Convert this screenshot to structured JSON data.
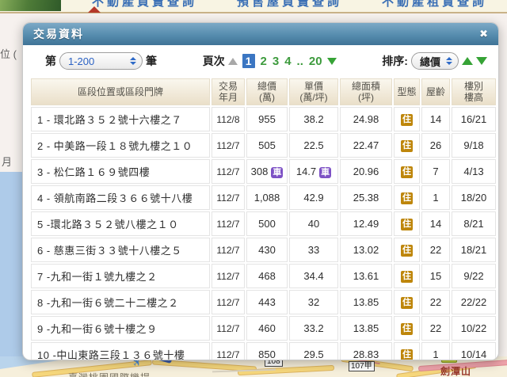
{
  "background": {
    "nav_tabs": [
      "不動產買賣查詢",
      "預售屋買賣查詢",
      "不動產租賃查詢"
    ],
    "left_fragment_top": "位 (",
    "left_fragment_bottom": "月",
    "map": {
      "road_badge_small": "108",
      "road_badge_large": "107甲",
      "mountain_label": "劍潭山",
      "airport_label": "臺灣桃園國際機場",
      "airplane_icon": "✈"
    }
  },
  "modal": {
    "title": "交易資料",
    "close_icon": "✖",
    "toolbar": {
      "records_prefix": "第",
      "records_value": "1-200",
      "records_suffix": "筆",
      "pages_label": "頁次",
      "pages": [
        "1",
        "2",
        "3",
        "4",
        "..",
        "20"
      ],
      "current_page": "1",
      "sort_label": "排序:",
      "sort_value": "總價"
    },
    "table": {
      "headers": [
        "區段位置或區段門牌",
        "交易\n年月",
        "總價\n(萬)",
        "單價\n(萬/坪)",
        "總面積\n(坪)",
        "型態",
        "屋齡",
        "樓別\n樓高"
      ],
      "rows": [
        {
          "addr": "1 - 環北路３５２號十六樓之７",
          "date": "112/8",
          "total": "955",
          "total_badge": "",
          "unit": "38.2",
          "unit_badge": "",
          "area": "24.98",
          "type": "住",
          "age": "14",
          "floor": "16/21"
        },
        {
          "addr": "2 - 中美路一段１８號九樓之１０",
          "date": "112/7",
          "total": "505",
          "total_badge": "",
          "unit": "22.5",
          "unit_badge": "",
          "area": "22.47",
          "type": "住",
          "age": "26",
          "floor": "9/18"
        },
        {
          "addr": "3 - 松仁路１６９號四樓",
          "date": "112/7",
          "total": "308",
          "total_badge": "車",
          "unit": "14.7",
          "unit_badge": "車",
          "area": "20.96",
          "type": "住",
          "age": "7",
          "floor": "4/13"
        },
        {
          "addr": "4 - 領航南路二段３６６號十八樓",
          "date": "112/7",
          "total": "1,088",
          "total_badge": "",
          "unit": "42.9",
          "unit_badge": "",
          "area": "25.38",
          "type": "住",
          "age": "1",
          "floor": "18/20"
        },
        {
          "addr": "5 -環北路３５２號八樓之１０",
          "date": "112/7",
          "total": "500",
          "total_badge": "",
          "unit": "40",
          "unit_badge": "",
          "area": "12.49",
          "type": "住",
          "age": "14",
          "floor": "8/21"
        },
        {
          "addr": "6 - 慈惠三街３３號十八樓之５",
          "date": "112/7",
          "total": "430",
          "total_badge": "",
          "unit": "33",
          "unit_badge": "",
          "area": "13.02",
          "type": "住",
          "age": "22",
          "floor": "18/21"
        },
        {
          "addr": "7 -九和一街１號九樓之２",
          "date": "112/7",
          "total": "468",
          "total_badge": "",
          "unit": "34.4",
          "unit_badge": "",
          "area": "13.61",
          "type": "住",
          "age": "15",
          "floor": "9/22"
        },
        {
          "addr": "8 -九和一街６號二十二樓之２",
          "date": "112/7",
          "total": "443",
          "total_badge": "",
          "unit": "32",
          "unit_badge": "",
          "area": "13.85",
          "type": "住",
          "age": "22",
          "floor": "22/22"
        },
        {
          "addr": "9 -九和一街６號十樓之９",
          "date": "112/7",
          "total": "460",
          "total_badge": "",
          "unit": "33.2",
          "unit_badge": "",
          "area": "13.85",
          "type": "住",
          "age": "22",
          "floor": "10/22"
        },
        {
          "addr": "10 -中山東路三段１３６號十樓",
          "date": "112/7",
          "total": "850",
          "total_badge": "",
          "unit": "29.5",
          "unit_badge": "",
          "area": "28.83",
          "type": "住",
          "age": "1",
          "floor": "10/14"
        }
      ]
    }
  },
  "colors": {
    "titlebar_top": "#7CA9C6",
    "titlebar_bottom": "#3F7396",
    "type_badge_bg": "#BE860B",
    "car_badge_bg": "#7D51C5",
    "current_page_bg": "#3B76C2",
    "page_link_green": "#3D9B3D",
    "select_text_blue": "#2B62C4",
    "header_cell_bg": "#EADFC9",
    "map_water": "#B9D4EC",
    "map_road_yellow": "#F6D77C",
    "map_road_pink": "#EFA3AB"
  }
}
